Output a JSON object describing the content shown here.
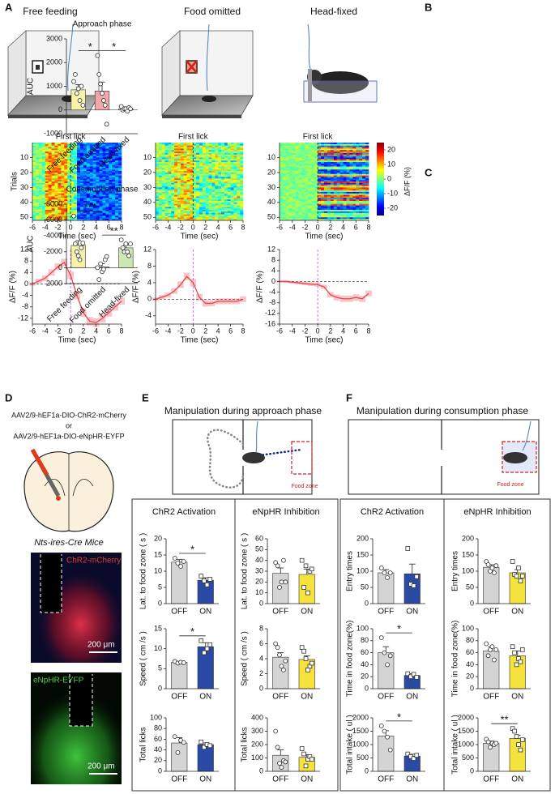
{
  "panel_labels": [
    "A",
    "B",
    "C",
    "D",
    "E",
    "F"
  ],
  "conditions": [
    "Free feeding",
    "Food omitted",
    "Head-fixed"
  ],
  "D": {
    "virus_1": "AAV2/9-hEF1a-DIO-ChR2-mCherry",
    "or": "or",
    "virus_2": "AAV2/9-hEF1a-DIO-eNpHR-EYFP",
    "mouse_line": "Nts-ires-Cre Mice",
    "image_1_label": "ChR2-mCherry",
    "image_1_scale": "200 μm",
    "image_2_label": "eNpHR-EYFP",
    "image_2_scale": "200 μm"
  },
  "E": {
    "title": "Manipulation during approach phase",
    "zone_label": "Food zone",
    "groups": [
      "ChR2 Activation",
      "eNpHR Inhibition"
    ]
  },
  "F": {
    "title": "Manipulation during consumption phase",
    "zone_label": "Food zone",
    "groups": [
      "ChR2 Activation",
      "eNpHR Inhibition"
    ]
  },
  "chart_data": [
    {
      "type": "heatmap",
      "title": "First lick",
      "xlabel": "Time (sec)",
      "ylabel": "Trials",
      "xlim": [
        -6,
        8
      ],
      "xticks": [
        -6,
        -4,
        -2,
        0,
        2,
        4,
        6,
        8
      ],
      "ylim": [
        52,
        0
      ],
      "yticks": [
        10,
        20,
        30,
        40,
        50
      ]
    },
    {
      "type": "heatmap",
      "title": "First lick",
      "xlabel": "Time (sec)",
      "xlim": [
        -6,
        8
      ],
      "xticks": [
        -6,
        -4,
        -2,
        0,
        2,
        4,
        6,
        8
      ],
      "ylim": [
        52,
        0
      ],
      "yticks": [
        10,
        20,
        30,
        40,
        50
      ]
    },
    {
      "type": "heatmap",
      "title": "First lick",
      "xlabel": "Time (sec)",
      "xlim": [
        -6,
        8
      ],
      "xticks": [
        -6,
        -4,
        -2,
        0,
        2,
        4,
        6,
        8
      ],
      "ylim": [
        52,
        0
      ],
      "yticks": [
        10,
        20,
        30,
        40,
        50
      ],
      "colorbar": {
        "label": "ΔF/F (%)",
        "lim": [
          -25,
          25
        ],
        "ticks": [
          20,
          10,
          0,
          -10,
          -20
        ]
      }
    },
    {
      "type": "line",
      "xlabel": "Time (sec)",
      "ylabel": "ΔF/F (%)",
      "color": "#e8434a",
      "xlim": [
        -6,
        8
      ],
      "xticks": [
        -6,
        -4,
        -2,
        0,
        2,
        4,
        6,
        8
      ],
      "ylim": [
        -14,
        12
      ],
      "yticks": [
        12,
        8,
        4,
        0,
        -4,
        -8,
        -12
      ],
      "x": [
        -6,
        -5,
        -4,
        -3,
        -2,
        -1,
        0,
        1,
        2,
        3,
        4,
        5,
        6,
        7,
        8
      ],
      "values": [
        0,
        1,
        2,
        4,
        6,
        7.5,
        3,
        -4,
        -10,
        -13,
        -13.5,
        -12,
        -10,
        -8,
        -6
      ],
      "errors": [
        0.6,
        0.8,
        1,
        1.1,
        1.2,
        1.3,
        1.3,
        1.4,
        1.5,
        1.5,
        1.5,
        1.5,
        1.4,
        1.3,
        1.2
      ]
    },
    {
      "type": "line",
      "xlabel": "Time (sec)",
      "ylabel": "ΔF/F (%)",
      "color": "#e8434a",
      "xlim": [
        -6,
        8
      ],
      "xticks": [
        -6,
        -4,
        -2,
        0,
        2,
        4,
        6,
        8
      ],
      "ylim": [
        -6,
        12
      ],
      "yticks": [
        12,
        8,
        4,
        0,
        -4
      ],
      "x": [
        -6,
        -5,
        -4,
        -3,
        -2,
        -1,
        0,
        1,
        2,
        3,
        4,
        5,
        6,
        7,
        8
      ],
      "values": [
        0,
        0.5,
        1,
        2,
        3.5,
        5.5,
        4,
        0.5,
        -1,
        -1,
        -0.5,
        -0.5,
        -0.5,
        -0.5,
        0
      ],
      "errors": [
        0.4,
        0.5,
        0.6,
        0.7,
        0.8,
        0.9,
        0.9,
        0.8,
        0.8,
        0.7,
        0.7,
        0.7,
        0.7,
        0.7,
        0.7
      ]
    },
    {
      "type": "line",
      "xlabel": "Time (sec)",
      "ylabel": "ΔF/F (%)",
      "color": "#e8434a",
      "xlim": [
        -6,
        8
      ],
      "xticks": [
        -6,
        -4,
        -2,
        0,
        2,
        4,
        6,
        8
      ],
      "ylim": [
        -16,
        12
      ],
      "yticks": [
        12,
        8,
        4,
        0,
        -4,
        -8,
        -12,
        -16
      ],
      "x": [
        -6,
        -5,
        -4,
        -3,
        -2,
        -1,
        0,
        1,
        2,
        3,
        4,
        5,
        6,
        7,
        8
      ],
      "values": [
        0,
        0,
        -0.3,
        -0.5,
        -0.8,
        -1,
        -1.2,
        -2,
        -5,
        -6,
        -6.5,
        -6.5,
        -6,
        -6.5,
        -4.5
      ],
      "errors": [
        0.4,
        0.5,
        0.5,
        0.6,
        0.6,
        0.7,
        0.7,
        0.8,
        1,
        1.1,
        1.2,
        1.2,
        1.2,
        1.2,
        1.1
      ]
    },
    {
      "type": "bar",
      "title": "Approach phase",
      "ylabel": "AUC",
      "categories": [
        "Free feeding",
        "Food omitted",
        "Head-fixed"
      ],
      "colors": [
        "#f6f3a8",
        "#f3a6a6",
        "#cde8b0"
      ],
      "values": [
        850,
        800,
        50
      ],
      "errors": [
        220,
        380,
        40
      ],
      "points": [
        [
          1200,
          1500,
          700,
          900,
          400,
          1000,
          200
        ],
        [
          2300,
          1500,
          1100,
          700,
          400,
          200,
          -600
        ],
        [
          150,
          0,
          50,
          50,
          -50,
          100,
          50
        ]
      ],
      "ylim": [
        -1000,
        3000
      ],
      "yticks": [
        -1000,
        0,
        1000,
        2000,
        3000
      ],
      "significance": [
        {
          "label": "*",
          "pair": [
            "Free feeding",
            "Food omitted"
          ]
        },
        {
          "label": "*",
          "pair": [
            "Food omitted",
            "Head-fixed"
          ]
        }
      ]
    },
    {
      "type": "bar",
      "title": "Consumption phase",
      "ylabel": "AUC",
      "categories": [
        "Free feeding",
        "Food omitted",
        "Head-fixed"
      ],
      "colors": [
        "#f6f3a8",
        "#f3a6a6",
        "#cde8b0"
      ],
      "values": [
        -2800,
        -100,
        -2500
      ],
      "errors": [
        600,
        400,
        350
      ],
      "points": [
        [
          -6500,
          -3000,
          -2000,
          -1500,
          -1000,
          -2500,
          -3100
        ],
        [
          0,
          1500,
          -500,
          500,
          200,
          -1000,
          -1400
        ],
        [
          -3500,
          -2500,
          -2000,
          -3000,
          -2000,
          -1500,
          -3000
        ]
      ],
      "ylim": [
        2000,
        -8000
      ],
      "yticks": [
        -8000,
        -6000,
        -4000,
        -2000,
        0,
        2000
      ],
      "significance": [
        {
          "label": "***",
          "pair": [
            "Free feeding",
            "Food omitted"
          ]
        },
        {
          "label": "**",
          "pair": [
            "Food omitted",
            "Head-fixed"
          ]
        }
      ]
    },
    {
      "type": "bar",
      "ylabel": "Lat. to food zone ( s )",
      "categories": [
        "OFF",
        "ON"
      ],
      "colors": [
        "#d4d4d4",
        "#2b4aa6"
      ],
      "markers": [
        "circle",
        "square"
      ],
      "values": [
        12.8,
        7.2
      ],
      "errors": [
        0.8,
        0.8
      ],
      "points": [
        [
          14,
          12.5,
          11.5,
          13
        ],
        [
          8.5,
          7,
          5.8,
          7.5
        ]
      ],
      "ylim": [
        0,
        20
      ],
      "yticks": [
        0,
        5,
        10,
        15,
        20
      ],
      "significance": [
        {
          "label": "*",
          "pair": [
            "OFF",
            "ON"
          ]
        }
      ]
    },
    {
      "type": "bar",
      "ylabel": "Speed ( cm /s )",
      "categories": [
        "OFF",
        "ON"
      ],
      "colors": [
        "#d4d4d4",
        "#2b4aa6"
      ],
      "markers": [
        "circle",
        "square"
      ],
      "values": [
        6.6,
        10.5
      ],
      "errors": [
        0.15,
        1
      ],
      "points": [
        [
          6.8,
          6.4,
          6.6,
          6.5
        ],
        [
          12,
          9,
          10,
          11
        ]
      ],
      "ylim": [
        0,
        15
      ],
      "yticks": [
        0,
        5,
        10,
        15
      ],
      "significance": [
        {
          "label": "*",
          "pair": [
            "OFF",
            "ON"
          ]
        }
      ]
    },
    {
      "type": "bar",
      "ylabel": "Total licks",
      "categories": [
        "OFF",
        "ON"
      ],
      "colors": [
        "#d4d4d4",
        "#2b4aa6"
      ],
      "markers": [
        "circle",
        "square"
      ],
      "values": [
        53,
        50
      ],
      "errors": [
        10,
        3
      ],
      "points": [
        [
          65,
          35,
          58,
          54
        ],
        [
          55,
          45,
          50,
          48
        ]
      ],
      "ylim": [
        0,
        100
      ],
      "yticks": [
        0,
        20,
        40,
        60,
        80,
        100
      ]
    },
    {
      "type": "bar",
      "ylabel": "Lat. to food zone ( s )",
      "categories": [
        "OFF",
        "ON"
      ],
      "colors": [
        "#d4d4d4",
        "#f5e23d"
      ],
      "markers": [
        "circle",
        "square"
      ],
      "values": [
        28,
        27
      ],
      "errors": [
        5,
        5
      ],
      "points": [
        [
          38,
          35,
          15,
          20,
          40,
          20
        ],
        [
          40,
          15,
          35,
          10,
          30,
          32
        ]
      ],
      "ylim": [
        0,
        60
      ],
      "yticks": [
        0,
        10,
        20,
        30,
        40,
        50,
        60
      ]
    },
    {
      "type": "bar",
      "ylabel": "Speed ( cm /s )",
      "categories": [
        "OFF",
        "ON"
      ],
      "colors": [
        "#d4d4d4",
        "#f5e23d"
      ],
      "markers": [
        "circle",
        "square"
      ],
      "values": [
        4.2,
        3.9
      ],
      "errors": [
        0.6,
        0.5
      ],
      "points": [
        [
          6,
          5.5,
          4.5,
          3,
          2.5,
          3.7
        ],
        [
          5.5,
          5,
          4,
          2.5,
          3,
          3.4
        ]
      ],
      "ylim": [
        0,
        8
      ],
      "yticks": [
        0,
        2,
        4,
        6,
        8
      ]
    },
    {
      "type": "bar",
      "ylabel": "Total licks",
      "categories": [
        "OFF",
        "ON"
      ],
      "colors": [
        "#d4d4d4",
        "#f5e23d"
      ],
      "markers": [
        "circle",
        "square"
      ],
      "values": [
        120,
        105
      ],
      "errors": [
        40,
        20
      ],
      "points": [
        [
          300,
          180,
          60,
          30,
          80,
          70
        ],
        [
          170,
          130,
          40,
          90,
          110,
          90
        ]
      ],
      "ylim": [
        0,
        400
      ],
      "yticks": [
        0,
        100,
        200,
        300,
        400
      ]
    },
    {
      "type": "bar",
      "ylabel": "Entry times",
      "categories": [
        "OFF",
        "ON"
      ],
      "colors": [
        "#d4d4d4",
        "#2b4aa6"
      ],
      "markers": [
        "circle",
        "square"
      ],
      "values": [
        95,
        92
      ],
      "errors": [
        10,
        30
      ],
      "points": [
        [
          110,
          95,
          80,
          95
        ],
        [
          170,
          60,
          55,
          83
        ]
      ],
      "ylim": [
        0,
        200
      ],
      "yticks": [
        0,
        50,
        100,
        150,
        200
      ]
    },
    {
      "type": "bar",
      "ylabel": "Time in food zone(%)",
      "categories": [
        "OFF",
        "ON"
      ],
      "colors": [
        "#d4d4d4",
        "#2b4aa6"
      ],
      "markers": [
        "circle",
        "square"
      ],
      "values": [
        60,
        22
      ],
      "errors": [
        10,
        3
      ],
      "points": [
        [
          85,
          60,
          40,
          55
        ],
        [
          25,
          20,
          24,
          19
        ]
      ],
      "ylim": [
        0,
        100
      ],
      "yticks": [
        0,
        20,
        40,
        60,
        80,
        100
      ],
      "significance": [
        {
          "label": "*",
          "pair": [
            "OFF",
            "ON"
          ]
        }
      ]
    },
    {
      "type": "bar",
      "ylabel": "Total intake ( ul )",
      "categories": [
        "OFF",
        "ON"
      ],
      "colors": [
        "#d4d4d4",
        "#2b4aa6"
      ],
      "markers": [
        "circle",
        "square"
      ],
      "values": [
        1320,
        570
      ],
      "errors": [
        200,
        70
      ],
      "points": [
        [
          1700,
          1500,
          1280,
          800
        ],
        [
          650,
          550,
          480,
          600
        ]
      ],
      "ylim": [
        0,
        2000
      ],
      "yticks": [
        0,
        500,
        1000,
        1500,
        2000
      ],
      "significance": [
        {
          "label": "*",
          "pair": [
            "OFF",
            "ON"
          ]
        }
      ]
    },
    {
      "type": "bar",
      "ylabel": "Entry times",
      "categories": [
        "OFF",
        "ON"
      ],
      "colors": [
        "#d4d4d4",
        "#f5e23d"
      ],
      "markers": [
        "circle",
        "square"
      ],
      "values": [
        112,
        95
      ],
      "errors": [
        8,
        10
      ],
      "points": [
        [
          130,
          120,
          100,
          110,
          95,
          117
        ],
        [
          130,
          90,
          85,
          110,
          70,
          85
        ]
      ],
      "ylim": [
        0,
        200
      ],
      "yticks": [
        0,
        50,
        100,
        150,
        200
      ]
    },
    {
      "type": "bar",
      "ylabel": "Time in food zone(%)",
      "categories": [
        "OFF",
        "ON"
      ],
      "colors": [
        "#d4d4d4",
        "#f5e23d"
      ],
      "markers": [
        "circle",
        "square"
      ],
      "values": [
        63,
        55
      ],
      "errors": [
        7,
        8
      ],
      "points": [
        [
          75,
          55,
          65,
          70,
          48,
          65
        ],
        [
          70,
          60,
          40,
          50,
          45,
          65
        ]
      ],
      "ylim": [
        0,
        100
      ],
      "yticks": [
        0,
        20,
        40,
        60,
        80,
        100
      ]
    },
    {
      "type": "bar",
      "ylabel": "Total intake ( ul )",
      "categories": [
        "OFF",
        "ON"
      ],
      "colors": [
        "#d4d4d4",
        "#f5e23d"
      ],
      "markers": [
        "circle",
        "square"
      ],
      "values": [
        1050,
        1230
      ],
      "errors": [
        80,
        120
      ],
      "points": [
        [
          1200,
          1100,
          900,
          1050,
          1000,
          1050
        ],
        [
          1600,
          1500,
          1300,
          1000,
          800,
          1180
        ]
      ],
      "ylim": [
        0,
        2000
      ],
      "yticks": [
        0,
        500,
        1000,
        1500,
        2000
      ],
      "significance": [
        {
          "label": "**",
          "pair": [
            "OFF",
            "ON"
          ]
        }
      ]
    }
  ]
}
